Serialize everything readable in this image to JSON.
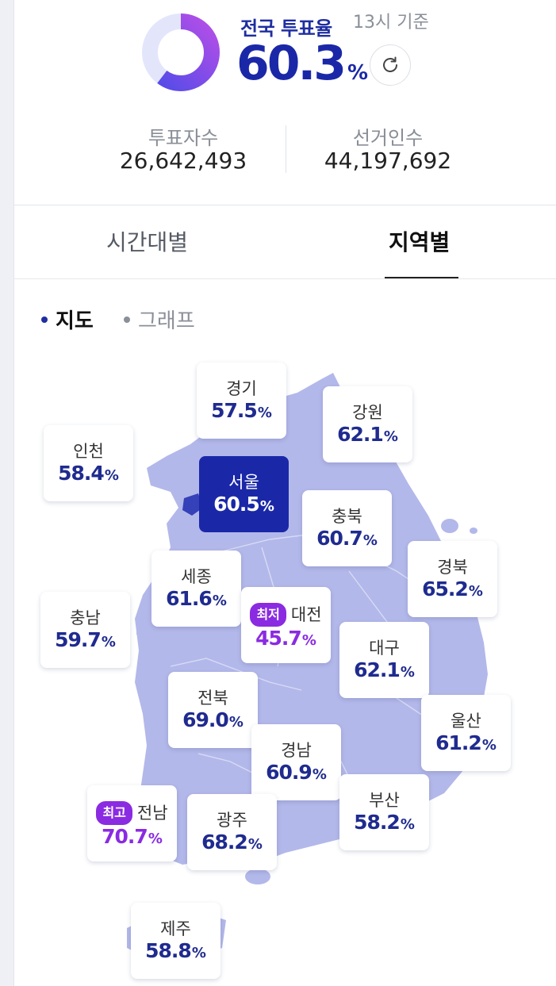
{
  "header": {
    "title": "전국 투표율",
    "basis": "13시 기준",
    "turnout_value": "60.3",
    "turnout_unit": "%",
    "turnout_fraction": 0.603,
    "refresh_icon": "refresh-icon",
    "accent_color": "#1a28a8",
    "gradient_colors": [
      "#4f4be8",
      "#b54ee8"
    ]
  },
  "stats": {
    "voters_label": "투표자수",
    "voters_value": "26,642,493",
    "electorate_label": "선거인수",
    "electorate_value": "44,197,692"
  },
  "tabs": {
    "time_label": "시간대별",
    "region_label": "지역별",
    "active": "region"
  },
  "view": {
    "map_label": "지도",
    "graph_label": "그래프",
    "active": "map"
  },
  "badges": {
    "lowest": "최저",
    "highest": "최고"
  },
  "colors": {
    "map_fill": "#b3b8ea",
    "selected_card": "#1a28a8",
    "value_text": "#1f2b8f",
    "highlight_purple": "#8a2be2"
  },
  "regions": {
    "gyeonggi": {
      "name": "경기",
      "value": "57.5",
      "unit": "%"
    },
    "gangwon": {
      "name": "강원",
      "value": "62.1",
      "unit": "%"
    },
    "incheon": {
      "name": "인천",
      "value": "58.4",
      "unit": "%"
    },
    "seoul": {
      "name": "서울",
      "value": "60.5",
      "unit": "%"
    },
    "chungbuk": {
      "name": "충북",
      "value": "60.7",
      "unit": "%"
    },
    "gyeongbuk": {
      "name": "경북",
      "value": "65.2",
      "unit": "%"
    },
    "sejong": {
      "name": "세종",
      "value": "61.6",
      "unit": "%"
    },
    "chungnam": {
      "name": "충남",
      "value": "59.7",
      "unit": "%"
    },
    "daejeon": {
      "name": "대전",
      "value": "45.7",
      "unit": "%"
    },
    "daegu": {
      "name": "대구",
      "value": "62.1",
      "unit": "%"
    },
    "jeonbuk": {
      "name": "전북",
      "value": "69.0",
      "unit": "%"
    },
    "ulsan": {
      "name": "울산",
      "value": "61.2",
      "unit": "%"
    },
    "gyeongnam": {
      "name": "경남",
      "value": "60.9",
      "unit": "%"
    },
    "jeonnam": {
      "name": "전남",
      "value": "70.7",
      "unit": "%"
    },
    "gwangju": {
      "name": "광주",
      "value": "68.2",
      "unit": "%"
    },
    "busan": {
      "name": "부산",
      "value": "58.2",
      "unit": "%"
    },
    "jeju": {
      "name": "제주",
      "value": "58.8",
      "unit": "%"
    }
  }
}
